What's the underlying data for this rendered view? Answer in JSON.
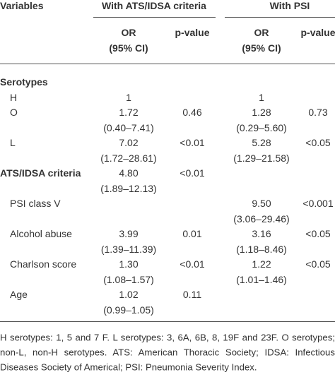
{
  "header": {
    "variables": "Variables"
  },
  "columns": [
    {
      "group": "With ATS/IDSA criteria",
      "or": "OR",
      "ci": "(95% CI)",
      "p": "p-value"
    },
    {
      "group": "With PSI",
      "or": "OR",
      "ci": "(95% CI)",
      "p": "p-value"
    }
  ],
  "sections": [
    {
      "title": "Serotypes",
      "values": null,
      "rows": [
        {
          "label": "H",
          "values": [
            {
              "or": "1"
            },
            {
              "or": "1"
            }
          ]
        },
        {
          "label": "O",
          "values": [
            {
              "or": "1.72",
              "ci": "(0.40–7.41)",
              "p": "0.46"
            },
            {
              "or": "1.28",
              "ci": "(0.29–5.60)",
              "p": "0.73"
            }
          ]
        },
        {
          "label": "L",
          "values": [
            {
              "or": "7.02",
              "ci": "(1.72–28.61)",
              "p": "<0.01"
            },
            {
              "or": "5.28",
              "ci": "(1.29–21.58)",
              "p": "<0.05"
            }
          ]
        }
      ]
    },
    {
      "title": "ATS/IDSA criteria",
      "values": [
        {
          "or": "4.80",
          "ci": "(1.89–12.13)",
          "p": "<0.01"
        },
        null
      ],
      "rows": [
        {
          "label": "PSI class V",
          "values": [
            null,
            {
              "or": "9.50",
              "ci": "(3.06–29.46)",
              "p": "<0.001"
            }
          ]
        },
        {
          "label": "Alcohol abuse",
          "values": [
            {
              "or": "3.99",
              "ci": "(1.39–11.39)",
              "p": "0.01"
            },
            {
              "or": "3.16",
              "ci": "(1.18–8.46)",
              "p": "<0.05"
            }
          ]
        },
        {
          "label": "Charlson score",
          "values": [
            {
              "or": "1.30",
              "ci": "(1.08–1.57)",
              "p": "<0.01"
            },
            {
              "or": "1.22",
              "ci": "(1.01–1.46)",
              "p": "<0.05"
            }
          ]
        },
        {
          "label": "Age",
          "values": [
            {
              "or": "1.02",
              "ci": "(0.99–1.05)",
              "p": "0.11"
            },
            null
          ]
        }
      ]
    }
  ],
  "footnote": [
    "H serotypes: 1, 5 and 7 F. L serotypes: 3, 6A, 6B, 8, 19F and 23F. O serotypes;",
    "non-L, non-H serotypes. ATS: American Thoracic Society; IDSA: Infectious",
    "Diseases Society of Americal; PSI: Pneumonia Severity Index."
  ]
}
